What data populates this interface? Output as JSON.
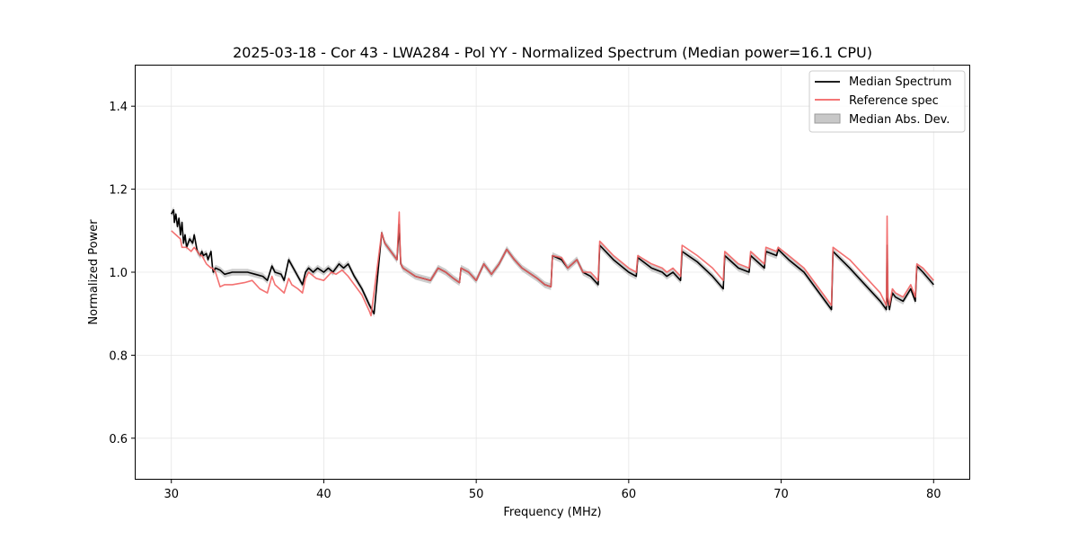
{
  "chart_data": {
    "type": "line",
    "title": "2025-03-18 - Cor 43 - LWA284 - Pol YY - Normalized Spectrum (Median power=16.1 CPU)",
    "xlabel": "Frequency (MHz)",
    "ylabel": "Normalized Power",
    "xlim": [
      27.6,
      82.4
    ],
    "ylim": [
      0.5,
      1.5
    ],
    "xticks": [
      30,
      40,
      50,
      60,
      70,
      80
    ],
    "yticks": [
      0.6,
      0.8,
      1.0,
      1.2,
      1.4
    ],
    "xtick_labels": [
      "30",
      "40",
      "50",
      "60",
      "70",
      "80"
    ],
    "ytick_labels": [
      "0.6",
      "0.8",
      "1.0",
      "1.2",
      "1.4"
    ],
    "grid": true,
    "legend": {
      "position": "upper right",
      "entries": [
        "Median Spectrum",
        "Reference spec",
        "Median Abs. Dev."
      ]
    },
    "series": [
      {
        "name": "Reference spec",
        "color": "#f26262",
        "x": [
          30.0,
          30.3,
          30.6,
          30.7,
          31.0,
          31.3,
          31.5,
          31.7,
          31.9,
          32.0,
          32.3,
          32.6,
          32.7,
          32.9,
          33.2,
          33.5,
          34.0,
          34.8,
          35.3,
          35.8,
          36.3,
          36.6,
          36.8,
          37.4,
          37.7,
          37.9,
          38.3,
          38.6,
          38.8,
          39.0,
          39.5,
          40.0,
          40.5,
          40.8,
          41.2,
          41.6,
          42.0,
          42.5,
          43.0,
          43.1,
          43.8,
          44.0,
          44.8,
          44.95,
          45.0,
          45.05,
          45.2,
          45.6,
          46.0,
          46.5,
          47.0,
          47.5,
          48.0,
          48.5,
          48.9,
          49.0,
          49.5,
          50.0,
          50.5,
          50.9,
          51.0,
          51.5,
          52.0,
          52.5,
          53.0,
          54.0,
          54.5,
          54.9,
          55.0,
          55.6,
          56.0,
          56.6,
          57.0,
          57.5,
          58.0,
          58.1,
          59.0,
          60.0,
          60.5,
          60.6,
          61.5,
          62.2,
          62.5,
          62.9,
          63.4,
          63.5,
          64.5,
          65.5,
          66.2,
          66.3,
          67.2,
          67.9,
          68.0,
          68.9,
          69.0,
          69.7,
          69.8,
          70.5,
          71.5,
          72.5,
          73.3,
          73.4,
          74.5,
          75.5,
          76.5,
          76.9,
          76.95,
          77.0,
          77.1,
          77.3,
          77.5,
          78.0,
          78.5,
          78.8,
          78.9,
          79.3,
          80.0
        ],
        "values": [
          1.1,
          1.09,
          1.08,
          1.06,
          1.06,
          1.05,
          1.06,
          1.05,
          1.04,
          1.04,
          1.02,
          1.01,
          1.01,
          1.0,
          0.965,
          0.97,
          0.97,
          0.975,
          0.98,
          0.96,
          0.95,
          0.99,
          0.97,
          0.95,
          0.985,
          0.97,
          0.96,
          0.95,
          0.985,
          1.0,
          0.985,
          0.98,
          1.0,
          0.995,
          1.005,
          0.99,
          0.97,
          0.945,
          0.905,
          0.895,
          1.095,
          1.07,
          1.03,
          1.145,
          1.07,
          1.02,
          1.01,
          1.0,
          0.99,
          0.985,
          0.98,
          1.01,
          1.0,
          0.985,
          0.975,
          1.01,
          1.0,
          0.98,
          1.02,
          1.0,
          0.995,
          1.02,
          1.055,
          1.03,
          1.01,
          0.985,
          0.97,
          0.965,
          1.04,
          1.035,
          1.01,
          1.03,
          1.0,
          1.0,
          0.98,
          1.075,
          1.04,
          1.01,
          1.0,
          1.04,
          1.02,
          1.01,
          1.0,
          1.01,
          0.99,
          1.065,
          1.04,
          1.01,
          0.98,
          1.05,
          1.02,
          1.01,
          1.05,
          1.02,
          1.06,
          1.05,
          1.06,
          1.04,
          1.01,
          0.96,
          0.92,
          1.06,
          1.03,
          0.99,
          0.95,
          0.92,
          1.135,
          0.94,
          0.92,
          0.96,
          0.95,
          0.94,
          0.97,
          0.94,
          1.02,
          1.01,
          0.98
        ]
      },
      {
        "name": "Median Spectrum",
        "color": "#000000",
        "x": [
          30.0,
          30.15,
          30.2,
          30.3,
          30.4,
          30.5,
          30.6,
          30.7,
          30.8,
          30.9,
          31.0,
          31.2,
          31.4,
          31.5,
          31.7,
          31.9,
          32.0,
          32.1,
          32.3,
          32.4,
          32.6,
          32.7,
          32.75,
          32.9,
          33.2,
          33.5,
          34.0,
          34.5,
          35.0,
          35.5,
          36.0,
          36.3,
          36.6,
          36.8,
          37.2,
          37.4,
          37.7,
          38.0,
          38.3,
          38.6,
          38.8,
          39.0,
          39.3,
          39.6,
          40.0,
          40.3,
          40.6,
          41.0,
          41.3,
          41.6,
          42.0,
          42.5,
          43.0,
          43.3,
          43.8,
          44.0,
          44.8,
          44.95,
          45.0,
          45.05,
          45.2,
          45.6,
          46.0,
          46.5,
          47.0,
          47.5,
          48.0,
          48.5,
          48.9,
          49.0,
          49.5,
          50.0,
          50.5,
          50.9,
          51.0,
          51.5,
          52.0,
          52.5,
          53.0,
          54.0,
          54.5,
          54.9,
          55.0,
          55.6,
          56.0,
          56.6,
          57.0,
          57.5,
          58.0,
          58.1,
          59.0,
          60.0,
          60.5,
          60.6,
          61.5,
          62.2,
          62.5,
          62.9,
          63.4,
          63.5,
          64.5,
          65.5,
          66.2,
          66.3,
          67.2,
          67.9,
          68.0,
          68.9,
          69.0,
          69.7,
          69.8,
          70.5,
          71.5,
          72.5,
          73.3,
          73.4,
          74.5,
          75.5,
          76.5,
          76.9,
          76.95,
          77.0,
          77.1,
          77.3,
          77.5,
          78.0,
          78.5,
          78.8,
          78.9,
          79.3,
          80.0
        ],
        "values": [
          1.14,
          1.15,
          1.12,
          1.14,
          1.11,
          1.13,
          1.09,
          1.12,
          1.07,
          1.09,
          1.06,
          1.08,
          1.07,
          1.09,
          1.05,
          1.04,
          1.05,
          1.04,
          1.045,
          1.03,
          1.05,
          1.01,
          1.0,
          1.01,
          1.005,
          0.995,
          1.0,
          1.0,
          1.0,
          0.995,
          0.99,
          0.98,
          1.015,
          1.0,
          0.995,
          0.98,
          1.03,
          1.01,
          0.99,
          0.97,
          1.0,
          1.01,
          1.0,
          1.01,
          1.0,
          1.01,
          1.0,
          1.02,
          1.01,
          1.02,
          0.99,
          0.96,
          0.92,
          0.9,
          1.095,
          1.07,
          1.03,
          1.115,
          1.06,
          1.02,
          1.01,
          1.0,
          0.99,
          0.985,
          0.98,
          1.01,
          1.0,
          0.985,
          0.975,
          1.01,
          1.0,
          0.98,
          1.02,
          1.0,
          0.995,
          1.02,
          1.055,
          1.03,
          1.01,
          0.985,
          0.97,
          0.965,
          1.04,
          1.03,
          1.01,
          1.03,
          1.0,
          0.99,
          0.97,
          1.065,
          1.03,
          1.0,
          0.99,
          1.035,
          1.01,
          1.0,
          0.99,
          1.0,
          0.98,
          1.05,
          1.025,
          0.99,
          0.96,
          1.04,
          1.01,
          1.0,
          1.04,
          1.01,
          1.05,
          1.04,
          1.055,
          1.03,
          1.0,
          0.95,
          0.91,
          1.05,
          1.01,
          0.97,
          0.93,
          0.91,
          1.065,
          0.93,
          0.91,
          0.95,
          0.94,
          0.93,
          0.96,
          0.93,
          1.015,
          1.0,
          0.97
        ]
      }
    ],
    "band": {
      "name": "Median Abs. Dev.",
      "color": "#c8c8c8",
      "mad": 0.008
    }
  }
}
